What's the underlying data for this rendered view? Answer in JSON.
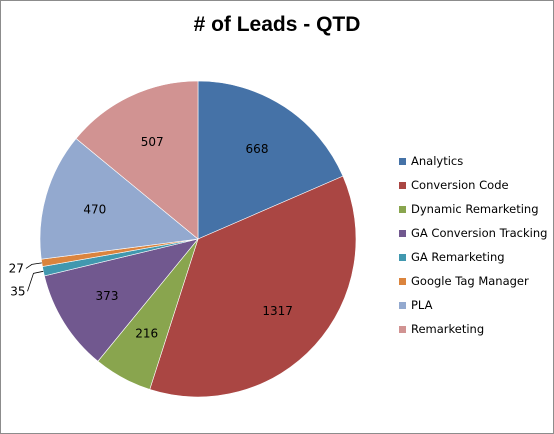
{
  "chart_data": {
    "type": "pie",
    "title": "# of Leads - QTD",
    "categories": [
      "Analytics",
      "Conversion Code",
      "Dynamic Remarketing",
      "GA Conversion Tracking",
      "GA Remarketing",
      "Google Tag Manager",
      "PLA",
      "Remarketing"
    ],
    "values": [
      668,
      1317,
      216,
      373,
      35,
      27,
      470,
      507
    ],
    "data_labels": [
      "668",
      "1317",
      "216",
      "373",
      "35",
      "27",
      "470",
      "507"
    ],
    "colors": [
      "#4572a7",
      "#aa4643",
      "#89a54e",
      "#71588f",
      "#4198af",
      "#db843d",
      "#93a9cf",
      "#d19392"
    ],
    "start_angle_deg": 0,
    "direction": "clockwise",
    "legend_position": "right"
  }
}
